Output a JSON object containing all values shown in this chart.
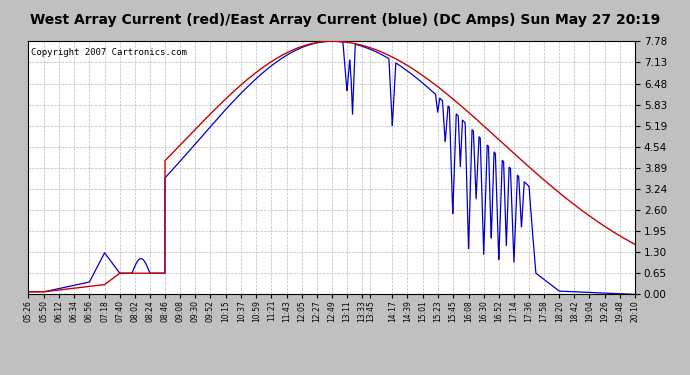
{
  "title": "West Array Current (red)/East Array Current (blue) (DC Amps) Sun May 27 20:19",
  "copyright": "Copyright 2007 Cartronics.com",
  "y_ticks": [
    0.0,
    0.65,
    1.3,
    1.95,
    2.6,
    3.24,
    3.89,
    4.54,
    5.19,
    5.83,
    6.48,
    7.13,
    7.78
  ],
  "ylim": [
    0.0,
    7.78
  ],
  "x_labels": [
    "05:26",
    "05:50",
    "06:12",
    "06:34",
    "06:56",
    "07:18",
    "07:40",
    "08:02",
    "08:24",
    "08:46",
    "09:08",
    "09:30",
    "09:52",
    "10:15",
    "10:37",
    "10:59",
    "11:21",
    "11:43",
    "12:05",
    "12:27",
    "12:49",
    "13:11",
    "13:33",
    "13:45",
    "14:17",
    "14:39",
    "15:01",
    "15:23",
    "15:45",
    "16:08",
    "16:30",
    "16:52",
    "17:14",
    "17:36",
    "17:58",
    "18:20",
    "18:42",
    "19:04",
    "19:26",
    "19:48",
    "20:10"
  ],
  "background_color": "#ffffff",
  "plot_bg_color": "#ffffff",
  "grid_color": "#aaaaaa",
  "red_color": "#cc0000",
  "blue_color": "#0000cc",
  "title_bg": "#c0c0c0",
  "border_color": "#000000",
  "title_fontsize": 10,
  "copyright_fontsize": 6.5,
  "ytick_fontsize": 7.5,
  "xtick_fontsize": 5.5
}
